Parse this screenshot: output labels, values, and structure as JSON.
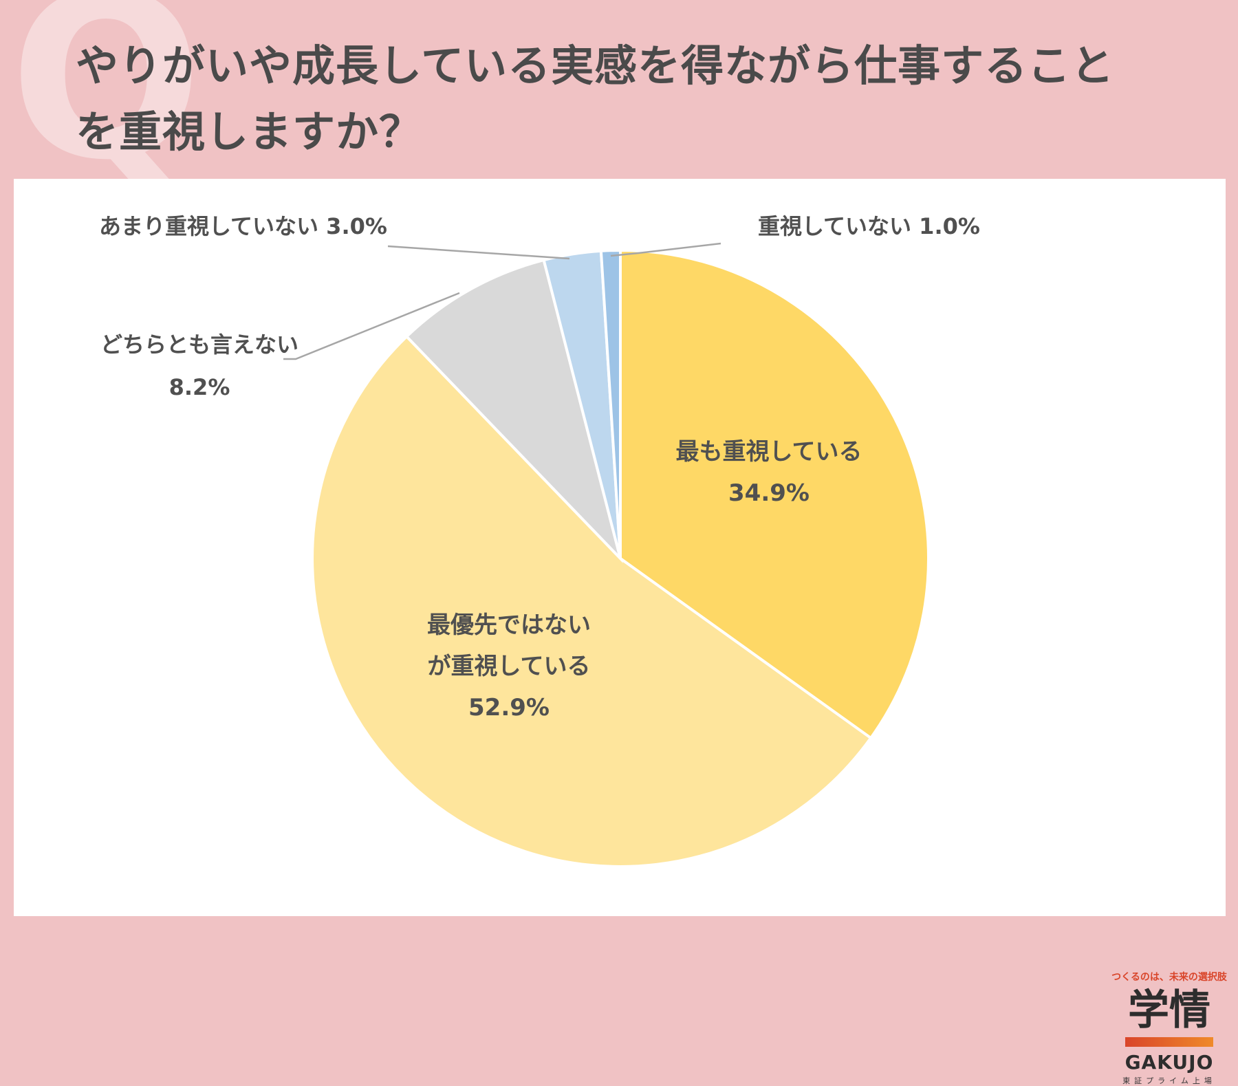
{
  "header": {
    "q_mark": "Q",
    "title_line1": "やりがいや成長している実感を得ながら仕事すること",
    "title_line2": "を重視しますか？"
  },
  "chart_data": {
    "type": "pie",
    "start_angle_deg": 0,
    "direction": "clockwise",
    "slices": [
      {
        "label_lines": [
          "最も重視している"
        ],
        "value_text": "34.9%",
        "value": 34.9,
        "color": "#fed866"
      },
      {
        "label_lines": [
          "最優先ではない",
          "が重視している"
        ],
        "value_text": "52.9%",
        "value": 52.9,
        "color": "#fee59c"
      },
      {
        "label_lines": [
          "どちらとも言えない"
        ],
        "value_text": "8.2%",
        "value": 8.2,
        "color": "#d9d9d9"
      },
      {
        "label_lines": [
          "あまり重視していない 3.0%"
        ],
        "value_text": "",
        "value": 3.0,
        "color": "#bdd7ee"
      },
      {
        "label_lines": [
          "重視していない 1.0%"
        ],
        "value_text": "",
        "value": 1.0,
        "color": "#9dc3e6"
      }
    ]
  },
  "logo": {
    "tagline": "つくるのは、未来の選択肢",
    "mark": "学情",
    "brand": "GAKUJO",
    "sub": "東証プライム上場",
    "accent": "#d9452a"
  }
}
